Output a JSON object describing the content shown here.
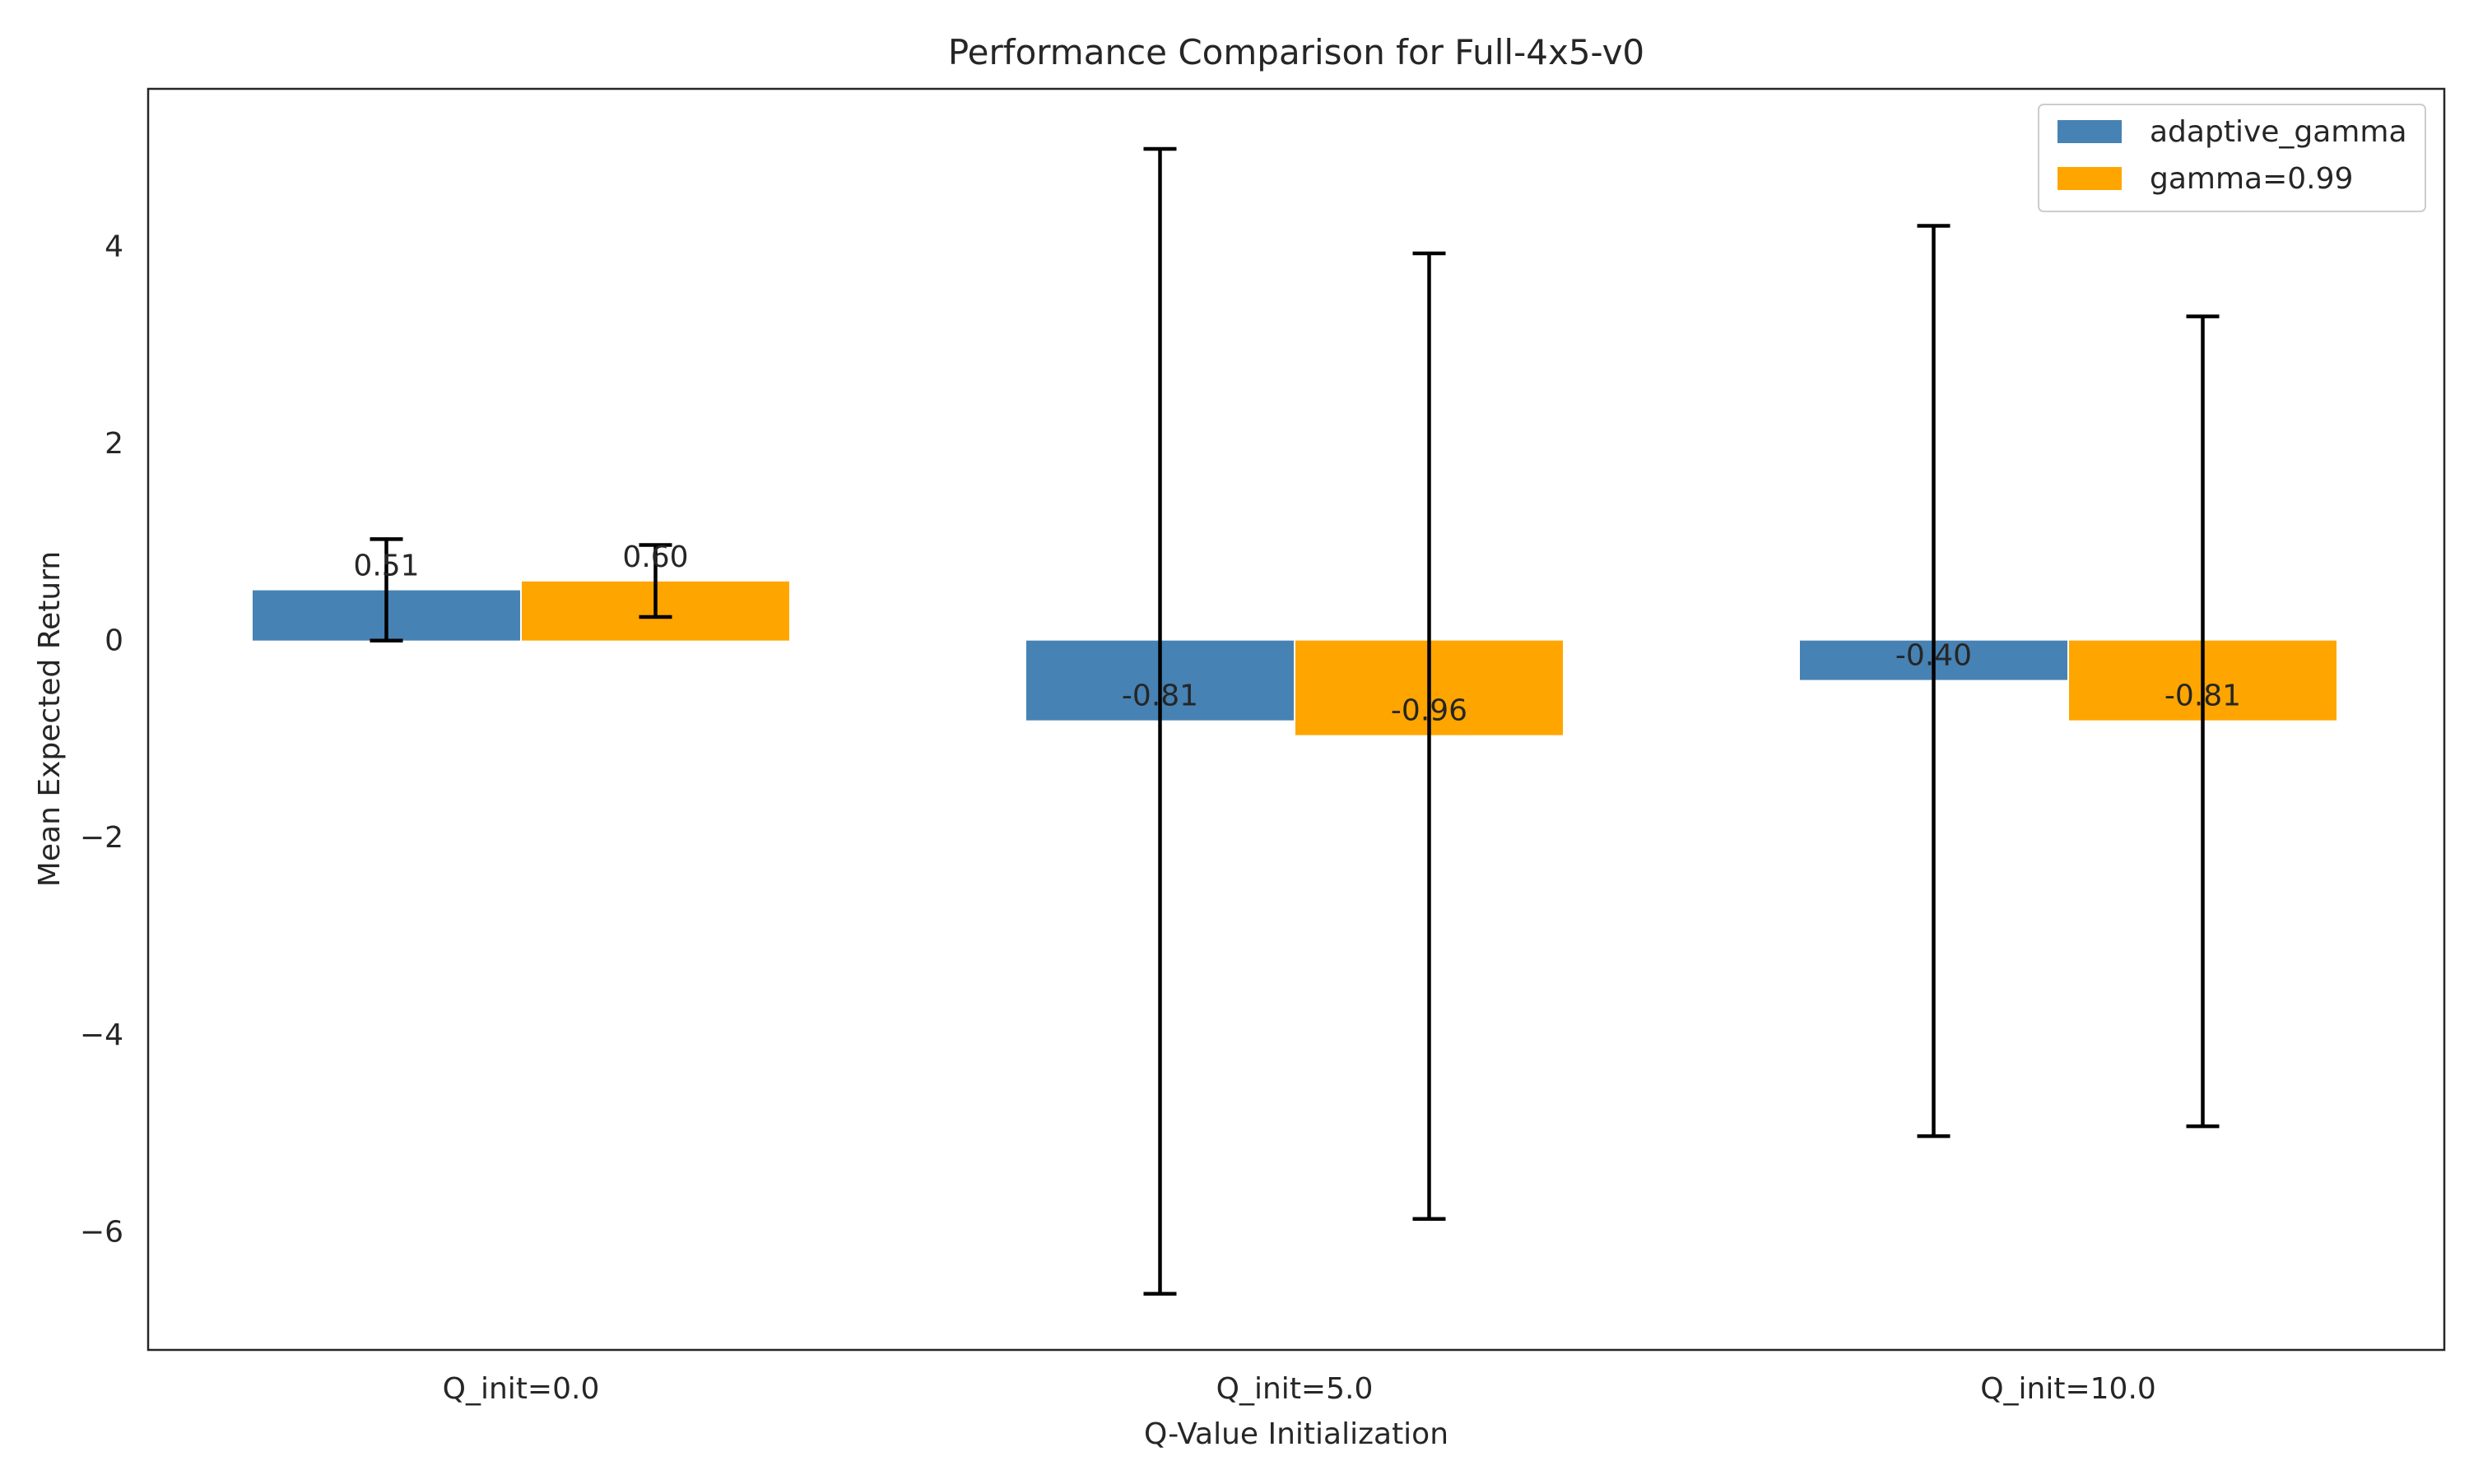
{
  "chart_data": {
    "type": "bar",
    "title": "Performance Comparison for Full-4x5-v0",
    "xlabel": "Q-Value Initialization",
    "ylabel": "Mean Expected Return",
    "categories": [
      "Q_init=0.0",
      "Q_init=5.0",
      "Q_init=10.0"
    ],
    "series": [
      {
        "name": "adaptive_gamma",
        "color": "#4682b4",
        "values": [
          0.51,
          -0.81,
          -0.4
        ],
        "value_labels": [
          "0.51",
          "-0.81",
          "-0.40"
        ],
        "error_low": [
          0.0,
          -6.63,
          -5.03
        ],
        "error_high": [
          1.03,
          4.99,
          4.21
        ]
      },
      {
        "name": "gamma=0.99",
        "color": "#ffa500",
        "values": [
          0.6,
          -0.96,
          -0.81
        ],
        "value_labels": [
          "0.60",
          "-0.96",
          "-0.81"
        ],
        "error_low": [
          0.24,
          -5.87,
          -4.93
        ],
        "error_high": [
          0.97,
          3.93,
          3.29
        ]
      }
    ],
    "yticks": [
      -6,
      -4,
      -2,
      0,
      2,
      4
    ],
    "ytick_labels": [
      "−6",
      "−4",
      "−2",
      "0",
      "2",
      "4"
    ],
    "ylim": [
      -7.2,
      5.6
    ],
    "grid": false,
    "legend_position": "top-right",
    "error_bar_color": "#000000"
  }
}
